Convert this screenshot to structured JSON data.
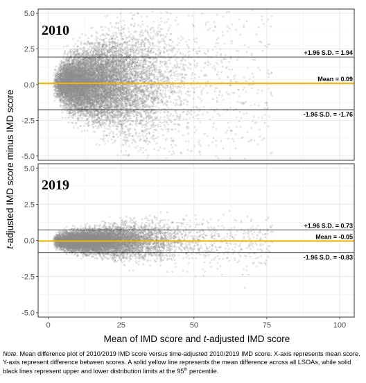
{
  "chart_data": {
    "type": "scatter",
    "x_axis": {
      "label_pre": "Mean of IMD score and ",
      "label_italic": "t",
      "label_post": "-adjusted IMD score",
      "range": [
        -3.5,
        105
      ],
      "ticks": [
        0,
        25,
        50,
        75,
        100
      ],
      "tick_labels": [
        "0",
        "25",
        "50",
        "75",
        "100"
      ]
    },
    "y_axis": {
      "label_italic": "t",
      "label_post": "-adjusted IMD score minus IMD score",
      "ticks": [
        -5.0,
        -2.5,
        0.0,
        2.5,
        5.0
      ],
      "tick_labels": [
        "-5.0",
        "-2.5",
        "0.0",
        "2.5",
        "5.0"
      ]
    },
    "grid": true,
    "marker_color": "#8c8c8c",
    "mean_line_color": "#f0b400",
    "limit_line_color": "#000000",
    "panels": [
      {
        "title": "2010",
        "ylim": [
          -5.3,
          5.3
        ],
        "mean": 0.09,
        "upper": 1.94,
        "lower": -1.76,
        "mean_label": "Mean = 0.09",
        "upper_label": "+1.96 S.D. = 1.94",
        "lower_label": "-1.96 S.D. = -1.76"
      },
      {
        "title": "2019",
        "ylim": [
          -5.3,
          5.3
        ],
        "mean": -0.05,
        "upper": 0.73,
        "lower": -0.83,
        "mean_label": "Mean = -0.05",
        "upper_label": "+1.96 S.D. = 0.73",
        "lower_label": "-1.96 S.D. = -0.83"
      }
    ]
  },
  "note": {
    "label": "Note",
    "text_1": ". Mean difference plot of 2010/2019 IMD score versus time-adjusted 2010/2019 IMD score. X-axis represents mean score. Y-axis represent difference between scores. A solid yellow line represents the mean difference across all LSOAs, while solid black lines represent upper and lower distribution limits at the 95",
    "sup": "th",
    "text_2": " percentile."
  }
}
